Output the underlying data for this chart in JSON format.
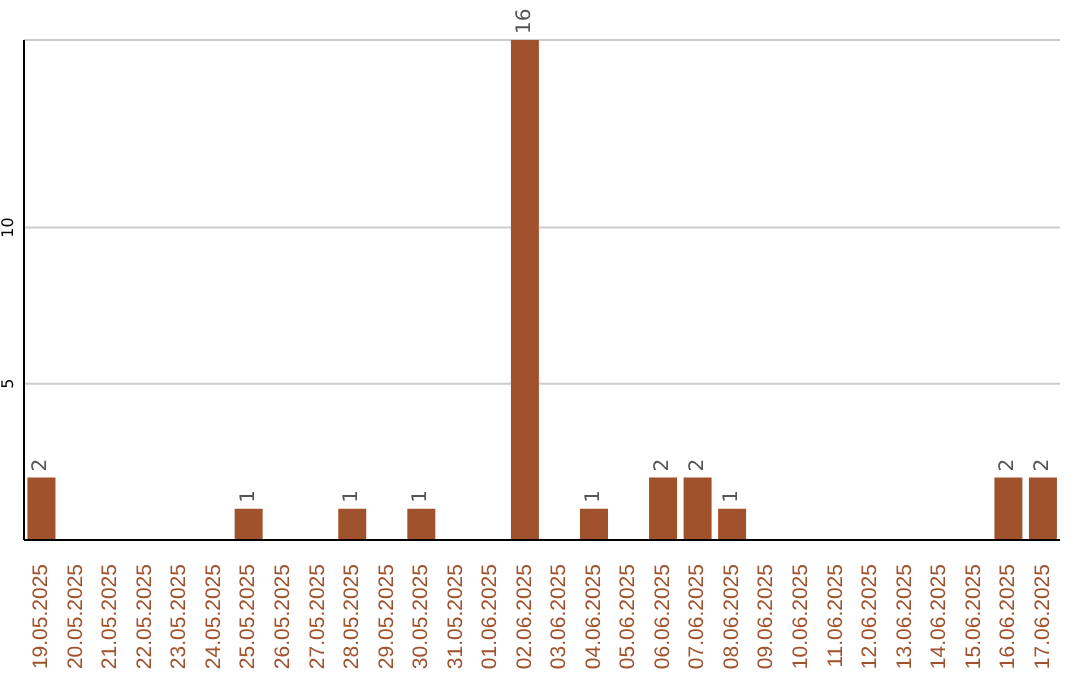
{
  "chart_data": {
    "type": "bar",
    "categories": [
      "19.05.2025",
      "20.05.2025",
      "21.05.2025",
      "22.05.2025",
      "23.05.2025",
      "24.05.2025",
      "25.05.2025",
      "26.05.2025",
      "27.05.2025",
      "28.05.2025",
      "29.05.2025",
      "30.05.2025",
      "31.05.2025",
      "01.06.2025",
      "02.06.2025",
      "03.06.2025",
      "04.06.2025",
      "05.06.2025",
      "06.06.2025",
      "07.06.2025",
      "08.06.2025",
      "09.06.2025",
      "10.06.2025",
      "11.06.2025",
      "12.06.2025",
      "13.06.2025",
      "14.06.2025",
      "15.06.2025",
      "16.06.2025",
      "17.06.2025"
    ],
    "values": [
      2,
      0,
      0,
      0,
      0,
      0,
      1,
      0,
      0,
      1,
      0,
      1,
      0,
      0,
      16,
      0,
      1,
      0,
      2,
      2,
      1,
      0,
      0,
      0,
      0,
      0,
      0,
      0,
      2,
      2
    ],
    "color": "#a0522d",
    "ylim": [
      0,
      16
    ],
    "yticks": [
      5,
      10
    ],
    "grid": "y",
    "value_labels": [
      "2",
      null,
      null,
      null,
      null,
      null,
      "1",
      null,
      null,
      "1",
      null,
      "1",
      null,
      null,
      "16",
      null,
      "1",
      null,
      "2",
      "2",
      "1",
      null,
      null,
      null,
      null,
      null,
      null,
      null,
      "2",
      "2"
    ]
  }
}
